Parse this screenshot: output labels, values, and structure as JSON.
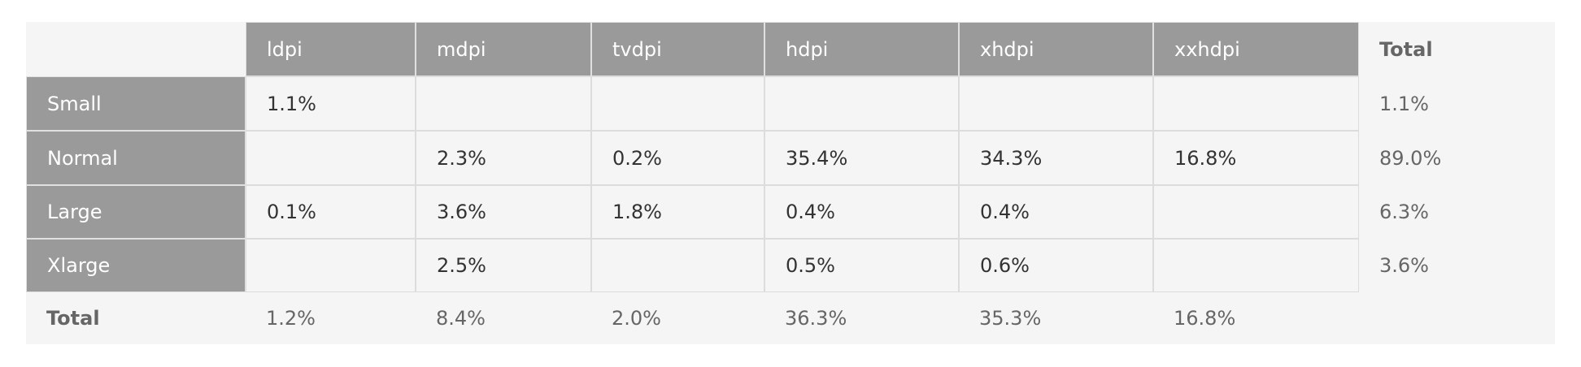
{
  "table": {
    "columns": [
      "ldpi",
      "mdpi",
      "tvdpi",
      "hdpi",
      "xhdpi",
      "xxhdpi"
    ],
    "total_column_label": "Total",
    "rows": [
      {
        "label": "Small",
        "cells": [
          "1.1%",
          null,
          null,
          null,
          null,
          null
        ],
        "total": "1.1%"
      },
      {
        "label": "Normal",
        "cells": [
          null,
          "2.3%",
          "0.2%",
          "35.4%",
          "34.3%",
          "16.8%"
        ],
        "total": "89.0%"
      },
      {
        "label": "Large",
        "cells": [
          "0.1%",
          "3.6%",
          "1.8%",
          "0.4%",
          "0.4%",
          null
        ],
        "total": "6.3%"
      },
      {
        "label": "Xlarge",
        "cells": [
          null,
          "2.5%",
          null,
          "0.5%",
          "0.6%",
          null
        ],
        "total": "3.6%"
      }
    ],
    "total_row": {
      "label": "Total",
      "cells": [
        "1.2%",
        "8.4%",
        "2.0%",
        "36.3%",
        "35.3%",
        "16.8%"
      ]
    }
  }
}
